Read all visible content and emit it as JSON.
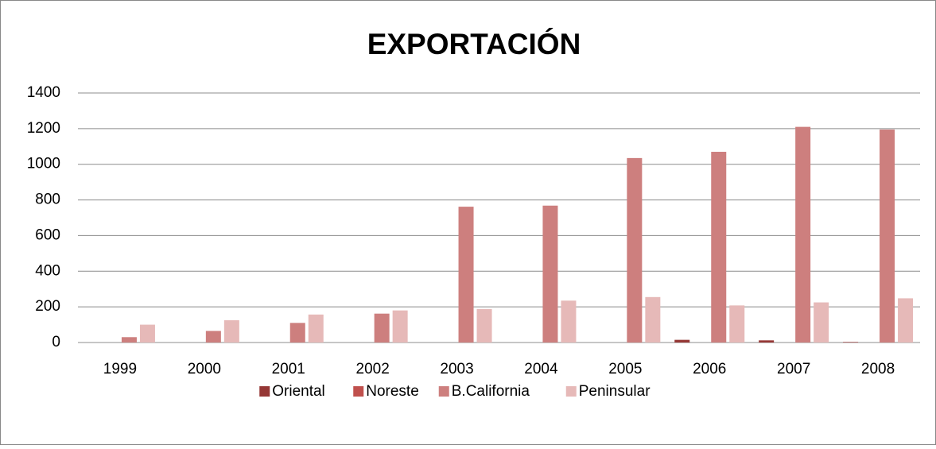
{
  "chart_data": {
    "type": "bar",
    "title": "EXPORTACIÓN",
    "categories": [
      "1999",
      "2000",
      "2001",
      "2002",
      "2003",
      "2004",
      "2005",
      "2006",
      "2007",
      "2008"
    ],
    "series": [
      {
        "name": "Oriental",
        "color": "#953735",
        "values": [
          0,
          0,
          0,
          0,
          0,
          0,
          0,
          15,
          12,
          3
        ]
      },
      {
        "name": "Noreste",
        "color": "#c0504d",
        "values": [
          0,
          0,
          0,
          0,
          0,
          0,
          0,
          0,
          0,
          0
        ]
      },
      {
        "name": "B.California",
        "color": "#cd7f7e",
        "values": [
          30,
          65,
          110,
          162,
          762,
          768,
          1035,
          1070,
          1210,
          1195
        ]
      },
      {
        "name": "Peninsular",
        "color": "#e6b9b8",
        "values": [
          100,
          125,
          157,
          180,
          188,
          235,
          255,
          208,
          225,
          248
        ]
      }
    ],
    "ylim": [
      0,
      1400
    ],
    "yticks": [
      0,
      200,
      400,
      600,
      800,
      1000,
      1200,
      1400
    ],
    "grid": true,
    "legend": "bottom"
  }
}
